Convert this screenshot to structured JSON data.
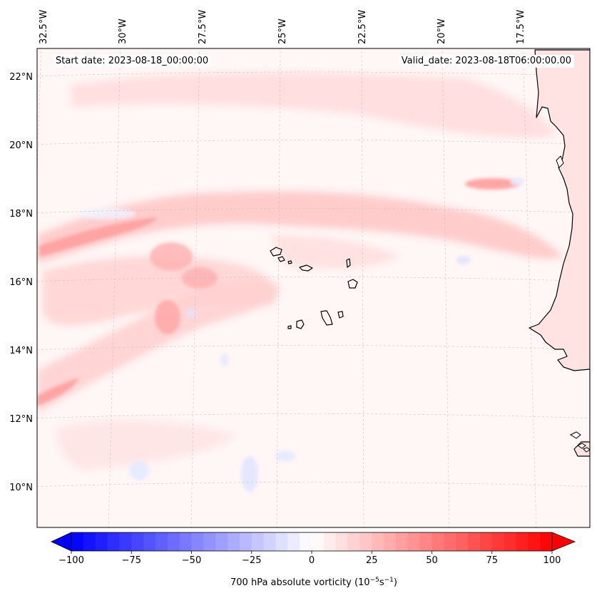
{
  "header": {
    "start_date": "Start date: 2023-08-18_00:00:00",
    "valid_date": "Valid_date: 2023-08-18T06:00:00.00"
  },
  "map": {
    "lon_labels": [
      "32.5°W",
      "30°W",
      "27.5°W",
      "25°W",
      "22.5°W",
      "20°W",
      "17.5°W"
    ],
    "lat_labels": [
      "22°N",
      "20°N",
      "18°N",
      "16°N",
      "14°N",
      "12°N",
      "10°N"
    ],
    "gridlines": true,
    "colors": {
      "positive": "#ff0000",
      "negative": "#0000ff",
      "neutral": "#ffffff",
      "coast": "#000000"
    }
  },
  "colorbar": {
    "label_prefix": "700 hPa absolute vorticity (10",
    "label_exp1": "−5",
    "label_mid": "s",
    "label_exp2": "−1",
    "label_suffix": ")",
    "ticks": [
      "−100",
      "−75",
      "−50",
      "−25",
      "0",
      "25",
      "50",
      "75",
      "100"
    ],
    "range": [
      -100,
      100
    ],
    "levels": 40,
    "extend": "both"
  }
}
